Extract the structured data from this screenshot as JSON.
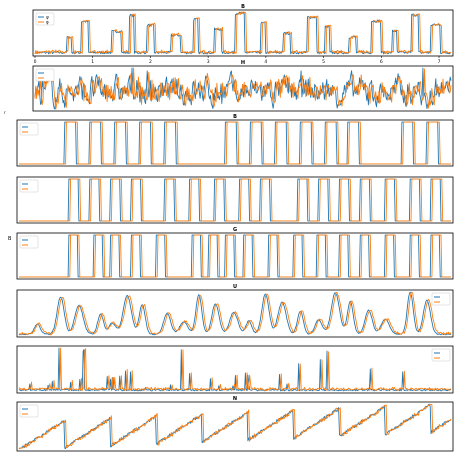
{
  "figure": {
    "side_labels": [
      "r",
      "B"
    ],
    "colors": {
      "series_a": "#1f77b4",
      "series_b": "#ff7f0e",
      "axes": "#000000",
      "legend_border": "#cccccc"
    }
  },
  "chart_data": [
    {
      "type": "line",
      "title": "B",
      "kind": "pulses_tall",
      "legend": {
        "placement": "upper-left",
        "entries": [
          "ψ",
          "φ"
        ]
      },
      "x_ticks": [
        "0",
        "1",
        "2",
        "3",
        "4",
        "5",
        "6",
        "7"
      ],
      "xlim": [
        0,
        7
      ],
      "grid": false,
      "series": [
        {
          "color": "#1f77b4"
        },
        {
          "color": "#ff7f0e"
        }
      ]
    },
    {
      "type": "line",
      "title": "H",
      "kind": "noise",
      "legend": {
        "placement": "upper-left",
        "entries": [
          "",
          ""
        ]
      },
      "grid": false,
      "series": [
        {
          "color": "#1f77b4"
        },
        {
          "color": "#ff7f0e"
        }
      ]
    },
    {
      "type": "line",
      "title": "B",
      "kind": "square_a",
      "legend": {
        "placement": "upper-left",
        "entries": [
          "",
          ""
        ]
      },
      "grid": false,
      "series": [
        {
          "color": "#1f77b4"
        },
        {
          "color": "#ff7f0e"
        }
      ]
    },
    {
      "type": "line",
      "title": "",
      "kind": "square_b",
      "legend": {
        "placement": "upper-left",
        "entries": [
          "",
          ""
        ]
      },
      "grid": false,
      "series": [
        {
          "color": "#1f77b4"
        },
        {
          "color": "#ff7f0e"
        }
      ]
    },
    {
      "type": "line",
      "title": "G",
      "kind": "square_c",
      "legend": {
        "placement": "upper-left",
        "entries": [
          "",
          ""
        ]
      },
      "grid": false,
      "series": [
        {
          "color": "#1f77b4"
        },
        {
          "color": "#ff7f0e"
        }
      ]
    },
    {
      "type": "line",
      "title": "U",
      "kind": "humps",
      "legend": {
        "placement": "upper-right",
        "entries": [
          "",
          ""
        ]
      },
      "grid": false,
      "series": [
        {
          "color": "#1f77b4"
        },
        {
          "color": "#ff7f0e"
        }
      ]
    },
    {
      "type": "line",
      "title": "",
      "kind": "spikes",
      "legend": {
        "placement": "upper-right",
        "entries": [
          "",
          ""
        ]
      },
      "grid": false,
      "series": [
        {
          "color": "#1f77b4"
        },
        {
          "color": "#ff7f0e"
        }
      ]
    },
    {
      "type": "line",
      "title": "N",
      "kind": "sawtooth",
      "legend": {
        "placement": "upper-left",
        "entries": [
          "",
          ""
        ]
      },
      "grid": false,
      "series": [
        {
          "color": "#1f77b4"
        },
        {
          "color": "#ff7f0e"
        }
      ]
    }
  ]
}
